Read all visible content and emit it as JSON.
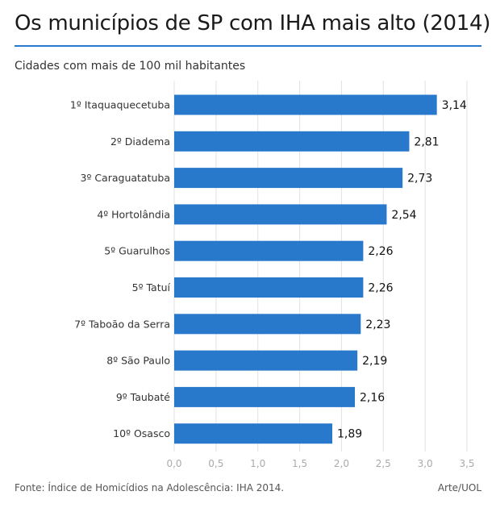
{
  "header": {
    "title": "Os municípios de SP com IHA mais alto (2014)",
    "subtitle": "Cidades com mais de 100 mil habitantes"
  },
  "footer": {
    "source": "Fonte: Índice de Homicídios na Adolescência: IHA 2014.",
    "credit": "Arte/UOL"
  },
  "colors": {
    "bar": "#2878cc",
    "accent_rule": "#2878cc",
    "grid": "#e2e2e2"
  },
  "chart_data": {
    "type": "bar",
    "orientation": "horizontal",
    "categories": [
      "1º Itaquaquecetuba",
      "2º Diadema",
      "3º Caraguatatuba",
      "4º Hortolândia",
      "5º Guarulhos",
      "5º Tatuí",
      "7º Taboão da Serra",
      "8º São Paulo",
      "9º Taubaté",
      "10º Osasco"
    ],
    "values": [
      3.14,
      2.81,
      2.73,
      2.54,
      2.26,
      2.26,
      2.23,
      2.19,
      2.16,
      1.89
    ],
    "value_labels": [
      "3,14",
      "2,81",
      "2,73",
      "2,54",
      "2,26",
      "2,26",
      "2,23",
      "2,19",
      "2,16",
      "1,89"
    ],
    "xlim": [
      0,
      3.5
    ],
    "xticks": [
      0,
      0.5,
      1,
      1.5,
      2,
      2.5,
      3,
      3.5
    ],
    "xtick_labels": [
      "0,0",
      "0,5",
      "1,0",
      "1,5",
      "2,0",
      "2,5",
      "3,0",
      "3,5"
    ],
    "grid": true
  }
}
